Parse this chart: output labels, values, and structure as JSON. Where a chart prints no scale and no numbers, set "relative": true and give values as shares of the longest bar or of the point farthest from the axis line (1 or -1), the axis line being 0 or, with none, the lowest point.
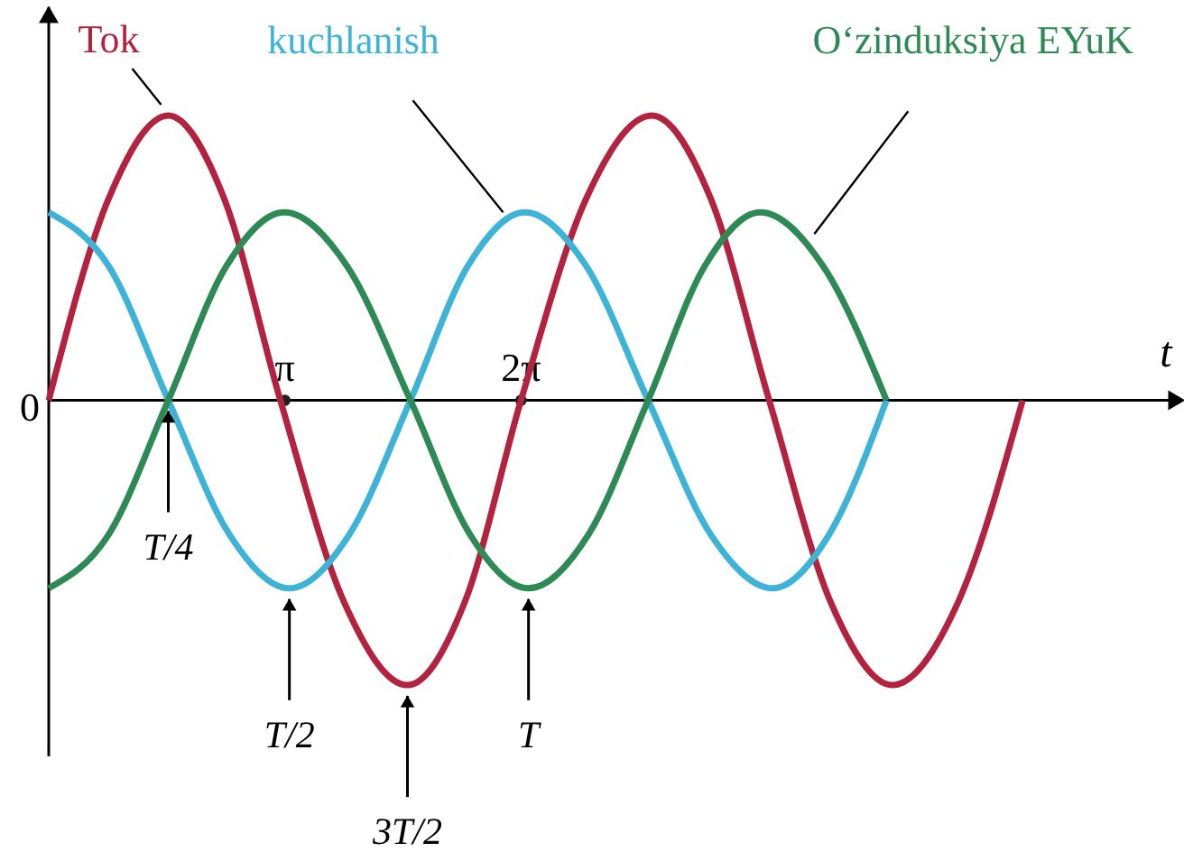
{
  "chart_data": {
    "type": "line",
    "relative": true,
    "xlabel": "t",
    "xlim": [
      0,
      15.0
    ],
    "xticks": [
      {
        "value": 3.14,
        "label": "π"
      },
      {
        "value": 6.28,
        "label": "2π"
      }
    ],
    "series": [
      {
        "name": "Tok",
        "color": "#b3223f",
        "x": [
          0,
          0.8,
          1.59,
          2.33,
          3.08,
          3.93,
          4.77,
          5.53,
          6.28,
          7.15,
          8.02,
          8.8,
          9.58,
          10.4,
          11.22,
          12.09,
          12.95
        ],
        "values": [
          0,
          0.71,
          1,
          0.71,
          0,
          -0.71,
          -1,
          -0.71,
          0,
          0.71,
          1,
          0.71,
          0,
          -0.71,
          -1,
          -0.71,
          0
        ]
      },
      {
        "name": "kuchlanish",
        "color": "#3db3d8",
        "x": [
          0,
          0.8,
          1.59,
          2.4,
          3.2,
          4.0,
          4.81,
          5.57,
          6.33,
          7.15,
          7.97,
          8.8,
          9.63,
          10.38,
          11.14
        ],
        "values": [
          0.66,
          0.47,
          0,
          -0.47,
          -0.66,
          -0.47,
          0,
          0.47,
          0.66,
          0.47,
          0,
          -0.47,
          -0.66,
          -0.47,
          0
        ]
      },
      {
        "name": "O‘zinduksiya EYuK",
        "color": "#2e8a55",
        "x": [
          0,
          0.8,
          1.59,
          2.36,
          3.13,
          3.97,
          4.81,
          5.6,
          6.38,
          7.18,
          7.97,
          8.72,
          9.46,
          10.3,
          11.14
        ],
        "values": [
          -0.66,
          -0.47,
          0,
          0.47,
          0.66,
          0.47,
          0,
          -0.47,
          -0.66,
          -0.47,
          0,
          0.47,
          0.66,
          0.47,
          0
        ]
      }
    ],
    "annotations": [
      {
        "text": "0",
        "x": 0,
        "y": 0
      },
      {
        "text": "T/4",
        "x": 1.59,
        "y": 0
      },
      {
        "text": "T/2",
        "x": 3.2,
        "y": -0.66
      },
      {
        "text": "3T/2",
        "x": 4.77,
        "y": -1
      },
      {
        "text": "T",
        "x": 6.38,
        "y": -0.66
      }
    ]
  }
}
